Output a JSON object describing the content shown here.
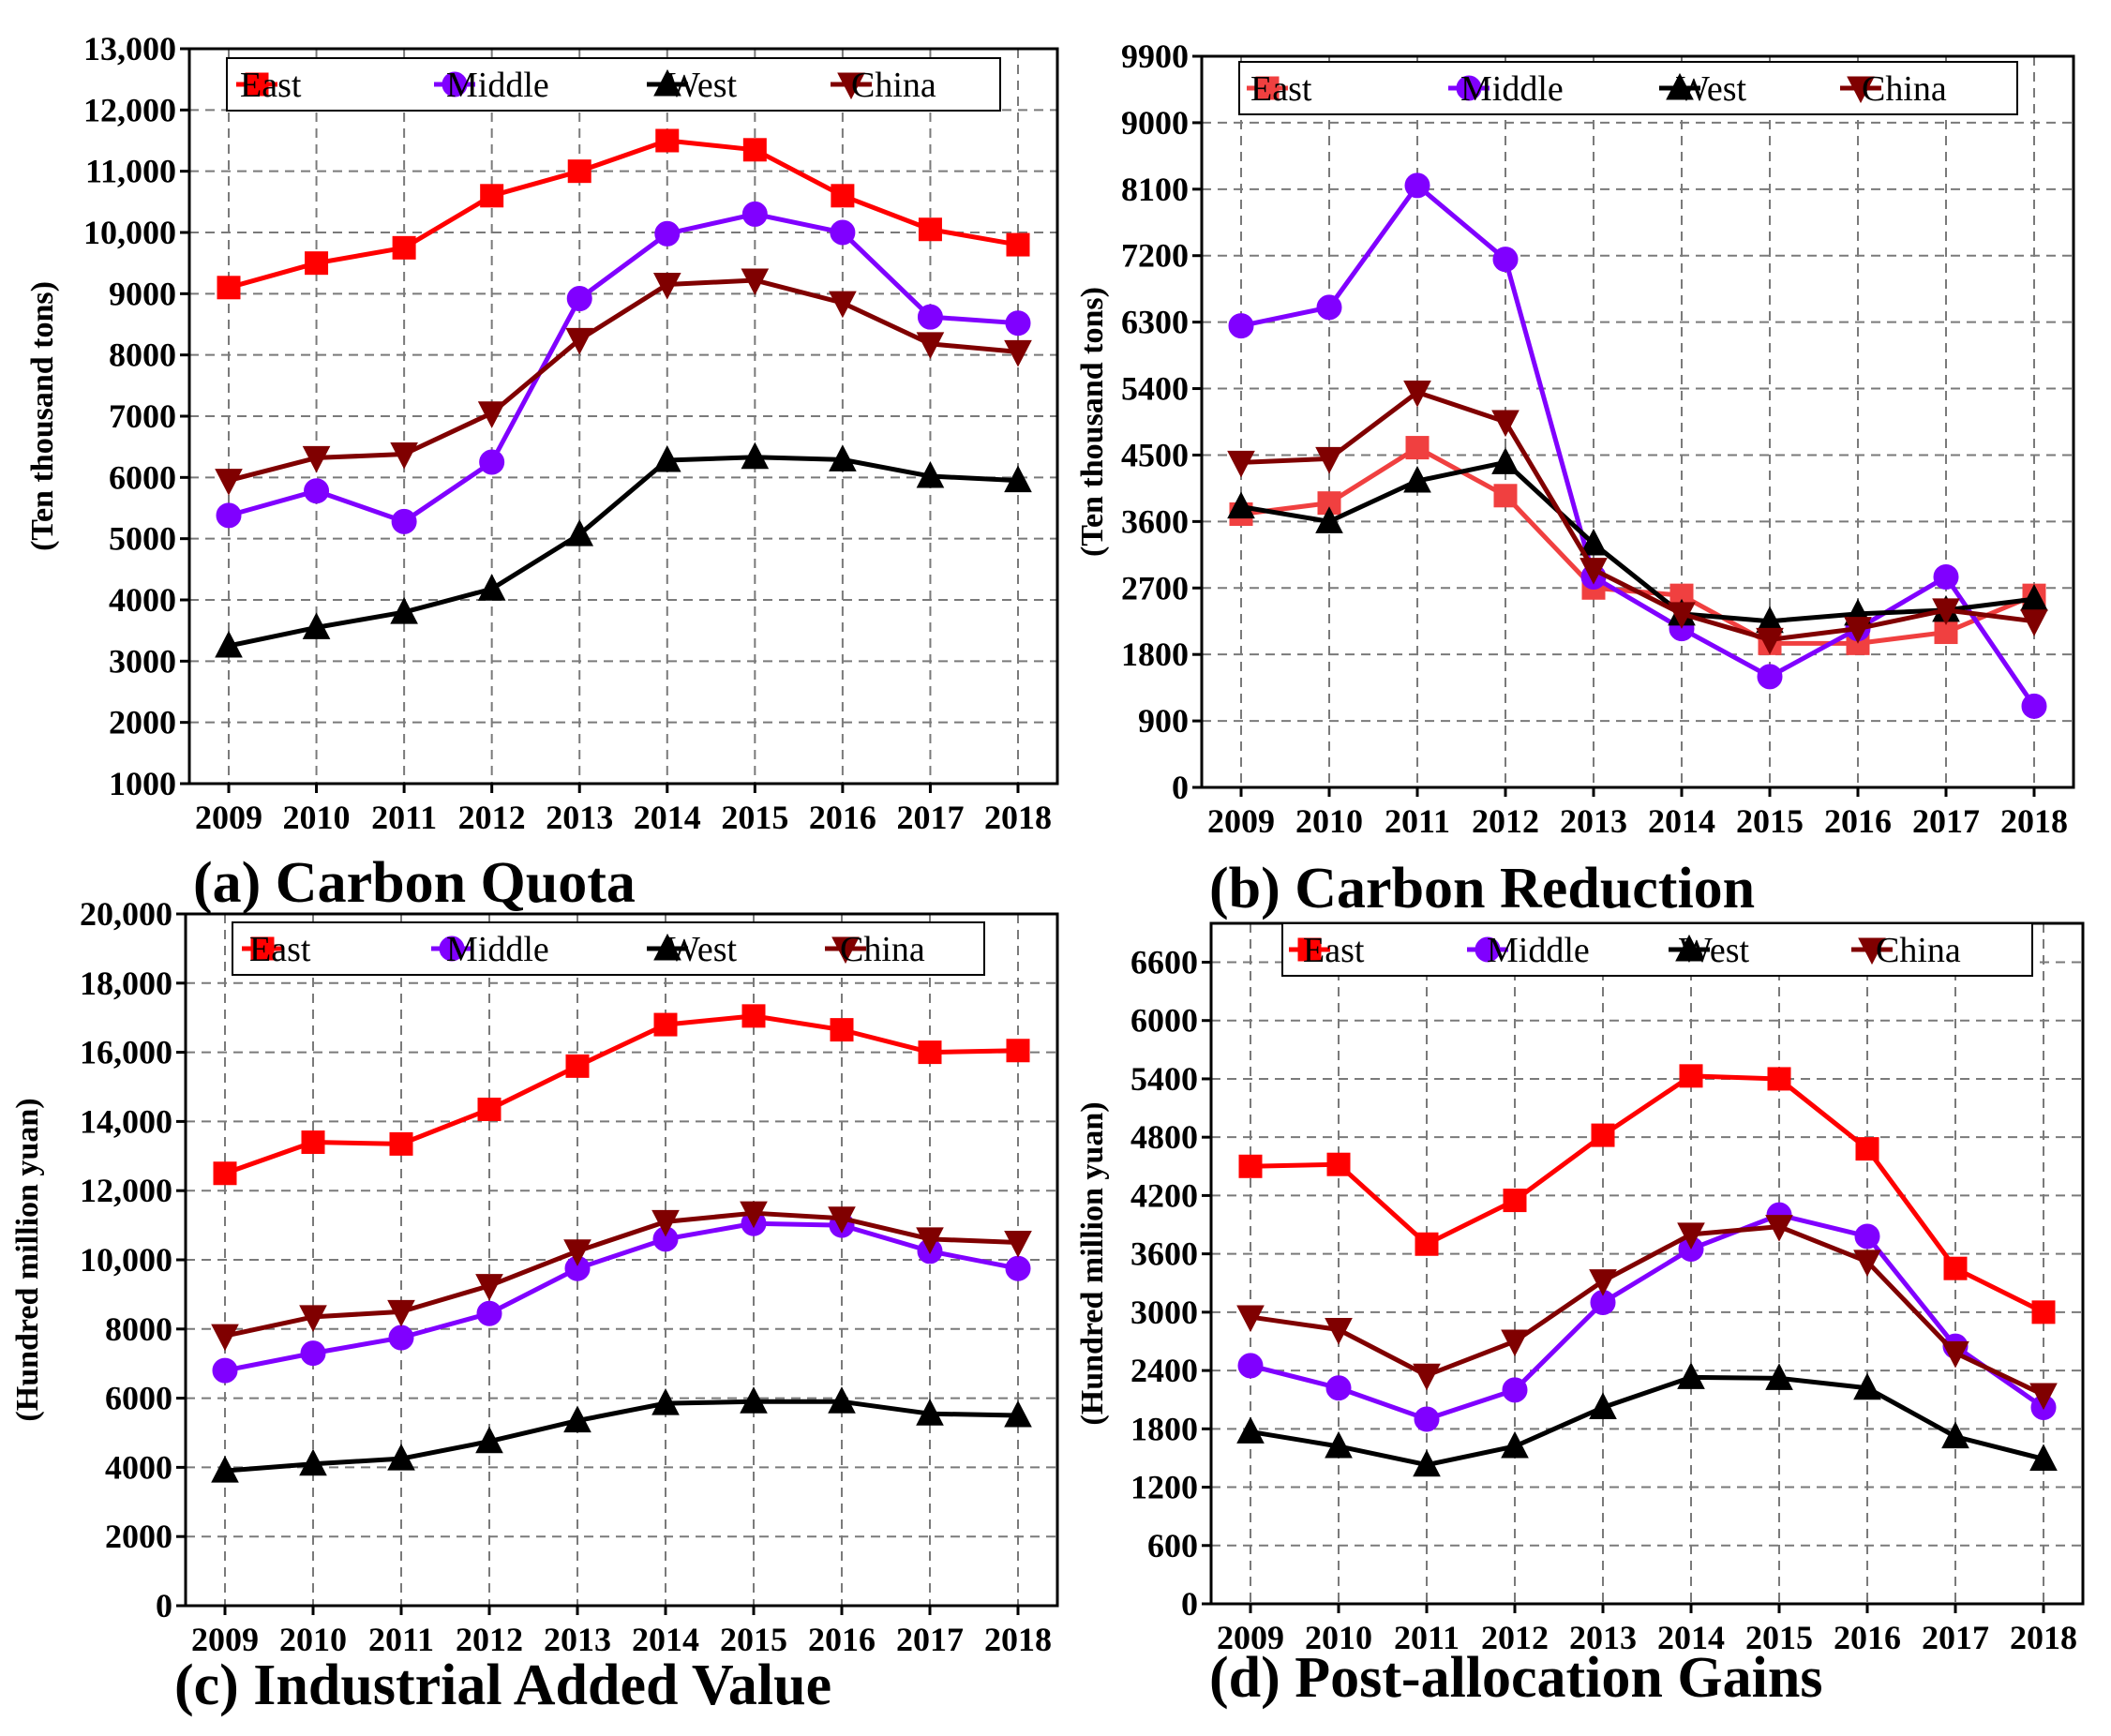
{
  "chart_data": [
    {
      "type": "line",
      "title": "(a) Carbon Quota",
      "xlabel": "",
      "ylabel": "(Ten thousand tons)",
      "categories": [
        "2009",
        "2010",
        "2011",
        "2012",
        "2013",
        "2014",
        "2015",
        "2016",
        "2017",
        "2018"
      ],
      "ylim": [
        1000,
        13000
      ],
      "ytick_labels": [
        "1000",
        "2000",
        "3000",
        "4000",
        "5000",
        "6000",
        "7000",
        "8000",
        "9000",
        "10,000",
        "11,000",
        "12,000",
        "13,000"
      ],
      "grid": true,
      "legend_position": "top",
      "series": [
        {
          "name": "East",
          "color": "#ff0000",
          "marker": "square",
          "values": [
            9100,
            9500,
            9750,
            10600,
            11000,
            11500,
            11350,
            10600,
            10050,
            9800
          ]
        },
        {
          "name": "Middle",
          "color": "#8000ff",
          "marker": "circle",
          "values": [
            5380,
            5780,
            5280,
            6250,
            8920,
            9980,
            10300,
            10000,
            8620,
            8520
          ]
        },
        {
          "name": "West",
          "color": "#000000",
          "marker": "triangle-up",
          "values": [
            3250,
            3550,
            3800,
            4180,
            5070,
            6280,
            6330,
            6290,
            6020,
            5950
          ]
        },
        {
          "name": "China",
          "color": "#800000",
          "marker": "triangle-down",
          "values": [
            5950,
            6320,
            6380,
            7050,
            8250,
            9150,
            9220,
            8850,
            8180,
            8050
          ]
        }
      ]
    },
    {
      "type": "line",
      "title": "(b) Carbon Reduction",
      "xlabel": "",
      "ylabel": "(Ten thousand tons)",
      "categories": [
        "2009",
        "2010",
        "2011",
        "2012",
        "2013",
        "2014",
        "2015",
        "2016",
        "2017",
        "2018"
      ],
      "ylim": [
        0,
        9900
      ],
      "ytick_labels": [
        "0",
        "900",
        "1800",
        "2700",
        "3600",
        "4500",
        "5400",
        "6300",
        "7200",
        "8100",
        "9000",
        "9900"
      ],
      "grid": true,
      "legend_position": "top",
      "series": [
        {
          "name": "East",
          "color": "#f04040",
          "marker": "square",
          "values": [
            3700,
            3850,
            4600,
            3950,
            2700,
            2600,
            1950,
            1950,
            2100,
            2600
          ]
        },
        {
          "name": "Middle",
          "color": "#8000ff",
          "marker": "circle",
          "values": [
            6250,
            6500,
            8150,
            7150,
            2850,
            2150,
            1500,
            2150,
            2850,
            1100
          ]
        },
        {
          "name": "West",
          "color": "#000000",
          "marker": "triangle-up",
          "values": [
            3800,
            3600,
            4150,
            4400,
            3300,
            2350,
            2250,
            2350,
            2400,
            2550
          ]
        },
        {
          "name": "China",
          "color": "#800000",
          "marker": "triangle-down",
          "values": [
            4400,
            4450,
            5350,
            4950,
            2950,
            2350,
            2000,
            2150,
            2400,
            2250
          ]
        }
      ]
    },
    {
      "type": "line",
      "title": "(c) Industrial Added Value",
      "xlabel": "",
      "ylabel": "(Hundred million yuan)",
      "categories": [
        "2009",
        "2010",
        "2011",
        "2012",
        "2013",
        "2014",
        "2015",
        "2016",
        "2017",
        "2018"
      ],
      "ylim": [
        0,
        20000
      ],
      "ytick_labels": [
        "0",
        "2000",
        "4000",
        "6000",
        "8000",
        "10,000",
        "12,000",
        "14,000",
        "16,000",
        "18,000",
        "20,000"
      ],
      "grid": true,
      "legend_position": "top",
      "series": [
        {
          "name": "East",
          "color": "#ff0000",
          "marker": "square",
          "values": [
            12500,
            13400,
            13350,
            14350,
            15600,
            16800,
            17050,
            16650,
            16000,
            16050
          ]
        },
        {
          "name": "Middle",
          "color": "#8000ff",
          "marker": "circle",
          "values": [
            6800,
            7300,
            7750,
            8450,
            9750,
            10600,
            11050,
            11000,
            10250,
            9750
          ]
        },
        {
          "name": "West",
          "color": "#000000",
          "marker": "triangle-up",
          "values": [
            3900,
            4100,
            4250,
            4750,
            5350,
            5850,
            5900,
            5900,
            5550,
            5500
          ]
        },
        {
          "name": "China",
          "color": "#800000",
          "marker": "triangle-down",
          "values": [
            7800,
            8350,
            8500,
            9250,
            10250,
            11100,
            11350,
            11200,
            10600,
            10500
          ]
        }
      ]
    },
    {
      "type": "line",
      "title": "(d) Post-allocation Gains",
      "xlabel": "",
      "ylabel": "(Hundred million yuan)",
      "categories": [
        "2009",
        "2010",
        "2011",
        "2012",
        "2013",
        "2014",
        "2015",
        "2016",
        "2017",
        "2018"
      ],
      "ylim": [
        0,
        7000
      ],
      "ytick_labels": [
        "0",
        "600",
        "1200",
        "1800",
        "2400",
        "3000",
        "3600",
        "4200",
        "4800",
        "5400",
        "6000",
        "6600"
      ],
      "grid": true,
      "legend_position": "top",
      "series": [
        {
          "name": "East",
          "color": "#ff0000",
          "marker": "square",
          "values": [
            4500,
            4520,
            3700,
            4150,
            4820,
            5430,
            5400,
            4680,
            3450,
            3000
          ]
        },
        {
          "name": "Middle",
          "color": "#8000ff",
          "marker": "circle",
          "values": [
            2450,
            2220,
            1900,
            2200,
            3100,
            3650,
            4000,
            3780,
            2650,
            2020
          ]
        },
        {
          "name": "West",
          "color": "#000000",
          "marker": "triangle-up",
          "values": [
            1770,
            1620,
            1430,
            1620,
            2020,
            2330,
            2320,
            2220,
            1720,
            1490
          ]
        },
        {
          "name": "China",
          "color": "#800000",
          "marker": "triangle-down",
          "values": [
            2950,
            2820,
            2350,
            2700,
            3320,
            3800,
            3880,
            3520,
            2580,
            2150
          ]
        }
      ]
    }
  ]
}
